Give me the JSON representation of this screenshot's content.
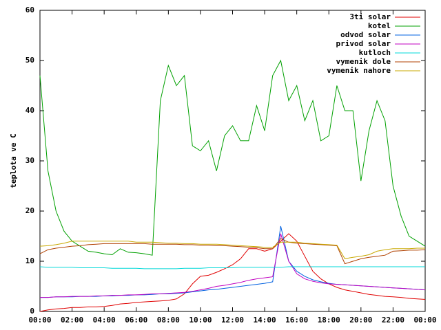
{
  "chart_data": {
    "type": "line",
    "ylabel": "teplota ve C",
    "x": [
      0,
      0.5,
      1,
      1.5,
      2,
      2.5,
      3,
      3.5,
      4,
      4.5,
      5,
      5.5,
      6,
      6.5,
      7,
      7.5,
      8,
      8.5,
      9,
      9.5,
      10,
      10.5,
      11,
      11.5,
      12,
      12.5,
      13,
      13.5,
      14,
      14.5,
      15,
      15.5,
      16,
      16.5,
      17,
      17.5,
      18,
      18.5,
      19,
      19.5,
      20,
      20.5,
      21,
      21.5,
      22,
      22.5,
      23,
      23.5,
      24
    ],
    "xlim": [
      0,
      24
    ],
    "xticks": [
      {
        "value": 0,
        "label": "00:00"
      },
      {
        "value": 2,
        "label": "02:00"
      },
      {
        "value": 4,
        "label": "04:00"
      },
      {
        "value": 6,
        "label": "06:00"
      },
      {
        "value": 8,
        "label": "08:00"
      },
      {
        "value": 10,
        "label": "10:00"
      },
      {
        "value": 12,
        "label": "12:00"
      },
      {
        "value": 14,
        "label": "14:00"
      },
      {
        "value": 16,
        "label": "16:00"
      },
      {
        "value": 18,
        "label": "18:00"
      },
      {
        "value": 20,
        "label": "20:00"
      },
      {
        "value": 22,
        "label": "22:00"
      },
      {
        "value": 24,
        "label": "00:00"
      }
    ],
    "ylim": [
      0,
      60
    ],
    "yticks": [
      0,
      10,
      20,
      30,
      40,
      50,
      60
    ],
    "legend": "top-right",
    "series": [
      {
        "name": "3ti solar",
        "color": "#e00000",
        "values": [
          0,
          0.3,
          0.5,
          0.6,
          0.8,
          0.8,
          0.9,
          0.9,
          1,
          1.2,
          1.5,
          1.6,
          1.8,
          1.9,
          2,
          2.1,
          2.2,
          2.5,
          3.5,
          5.5,
          7,
          7.2,
          7.8,
          8.5,
          9.3,
          10.5,
          12.5,
          12.5,
          12,
          12.5,
          14,
          15.5,
          14,
          11,
          8,
          6.5,
          5.5,
          4.8,
          4.3,
          4,
          3.7,
          3.4,
          3.2,
          3,
          2.9,
          2.8,
          2.6,
          2.5,
          2.4
        ]
      },
      {
        "name": "kotel",
        "color": "#00a000",
        "values": [
          47,
          28,
          20,
          16,
          14,
          13,
          12,
          11.8,
          11.5,
          11.3,
          12.5,
          11.8,
          11.7,
          11.5,
          11.2,
          42,
          49,
          45,
          47,
          33,
          32,
          34,
          28,
          35,
          37,
          34,
          34,
          41,
          36,
          47,
          50,
          42,
          45,
          38,
          42,
          34,
          35,
          45,
          40,
          40,
          26,
          36,
          42,
          38,
          25,
          19,
          15,
          14,
          13
        ]
      },
      {
        "name": "odvod solar",
        "color": "#0060e0",
        "values": [
          2.8,
          2.8,
          2.9,
          2.9,
          2.9,
          3,
          3,
          3,
          3.1,
          3.1,
          3.2,
          3.2,
          3.3,
          3.3,
          3.4,
          3.5,
          3.5,
          3.6,
          3.7,
          3.9,
          4.1,
          4.3,
          4.4,
          4.6,
          4.8,
          5,
          5.2,
          5.4,
          5.6,
          5.9,
          17,
          10,
          8,
          7,
          6.3,
          5.9,
          5.6,
          5.4,
          5.3,
          5.2,
          5.1,
          5,
          4.9,
          4.8,
          4.7,
          4.6,
          4.5,
          4.4,
          4.3
        ]
      },
      {
        "name": "privod solar",
        "color": "#c000c0",
        "values": [
          2.8,
          2.8,
          2.9,
          2.9,
          3,
          3,
          3,
          3.1,
          3.1,
          3.2,
          3.2,
          3.3,
          3.3,
          3.4,
          3.5,
          3.5,
          3.6,
          3.7,
          3.8,
          4,
          4.3,
          4.6,
          5,
          5.2,
          5.5,
          5.8,
          6.2,
          6.5,
          6.7,
          6.9,
          15.5,
          10,
          7.5,
          6.5,
          6,
          5.7,
          5.5,
          5.4,
          5.3,
          5.2,
          5.1,
          5,
          4.9,
          4.8,
          4.7,
          4.6,
          4.5,
          4.4,
          4.3
        ]
      },
      {
        "name": "kutloch",
        "color": "#00d8d8",
        "values": [
          8.9,
          8.8,
          8.8,
          8.8,
          8.8,
          8.7,
          8.7,
          8.7,
          8.7,
          8.6,
          8.6,
          8.6,
          8.6,
          8.5,
          8.5,
          8.5,
          8.5,
          8.5,
          8.6,
          8.6,
          8.6,
          8.7,
          8.7,
          8.7,
          8.7,
          8.8,
          8.8,
          8.8,
          8.8,
          8.8,
          8.8,
          8.9,
          8.9,
          8.9,
          8.9,
          8.9,
          8.9,
          8.9,
          8.9,
          8.9,
          8.9,
          8.9,
          8.9,
          8.9,
          8.9,
          8.9,
          8.9,
          8.9,
          8.9
        ]
      },
      {
        "name": "vymenik dole",
        "color": "#b04000",
        "values": [
          11.5,
          12.3,
          12.6,
          12.8,
          13,
          13.1,
          13.3,
          13.4,
          13.5,
          13.5,
          13.5,
          13.5,
          13.5,
          13.5,
          13.4,
          13.4,
          13.4,
          13.4,
          13.3,
          13.3,
          13.2,
          13.2,
          13.1,
          13.1,
          13,
          12.9,
          12.8,
          12.7,
          12.5,
          12.5,
          14.5,
          13.8,
          13.6,
          13.5,
          13.4,
          13.3,
          13.2,
          13.1,
          9.5,
          10,
          10.5,
          10.8,
          11,
          11.2,
          12,
          12.1,
          12.2,
          12.2,
          12.3
        ]
      },
      {
        "name": "vymenik nahore",
        "color": "#c8a800",
        "values": [
          13,
          13.1,
          13.3,
          13.6,
          14,
          14,
          14,
          14,
          14,
          14,
          14,
          14,
          13.8,
          13.8,
          13.8,
          13.7,
          13.6,
          13.6,
          13.5,
          13.5,
          13.4,
          13.4,
          13.4,
          13.3,
          13.2,
          13.1,
          13,
          12.9,
          12.8,
          12.8,
          13.8,
          13.8,
          13.8,
          13.6,
          13.5,
          13.4,
          13.3,
          13.2,
          10.5,
          10.8,
          11,
          11.3,
          12,
          12.3,
          12.5,
          12.5,
          12.5,
          12.6,
          12.6
        ]
      }
    ]
  }
}
